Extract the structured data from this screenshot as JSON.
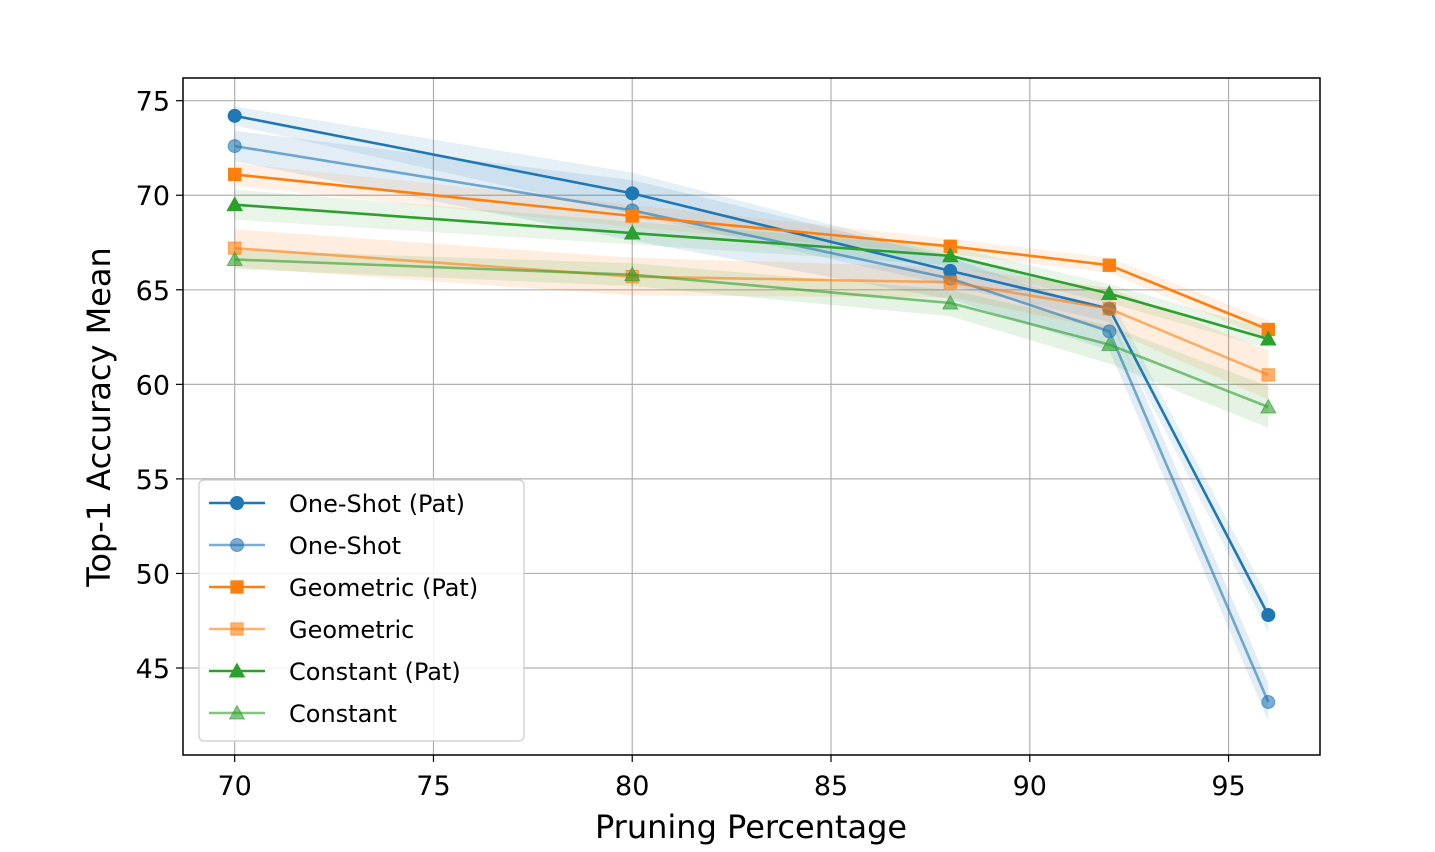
{
  "chart_data": {
    "type": "line",
    "title": "",
    "xlabel": "Pruning Percentage",
    "ylabel": "Top-1 Accuracy Mean",
    "xlim": [
      68.7,
      97.3
    ],
    "ylim": [
      40.4,
      76.2
    ],
    "xticks": [
      70,
      75,
      80,
      85,
      90,
      95
    ],
    "yticks": [
      45,
      50,
      55,
      60,
      65,
      70,
      75
    ],
    "grid": true,
    "legend_position": "bottom-left",
    "x": [
      70,
      80,
      88,
      92,
      96
    ],
    "series": [
      {
        "name": "One-Shot (Pat)",
        "marker": "circle",
        "color": "#1f77b4",
        "opacity": 1.0,
        "values": [
          74.2,
          70.1,
          66.0,
          64.0,
          47.8
        ],
        "band_lower": [
          73.7,
          69.0,
          65.2,
          63.3,
          46.9
        ],
        "band_upper": [
          74.7,
          71.2,
          66.8,
          64.7,
          48.7
        ]
      },
      {
        "name": "One-Shot",
        "marker": "circle",
        "color": "#1f77b4",
        "opacity": 0.6,
        "values": [
          72.6,
          69.2,
          65.6,
          62.8,
          43.2
        ],
        "band_lower": [
          71.8,
          67.6,
          64.5,
          61.8,
          42.2
        ],
        "band_upper": [
          73.4,
          70.8,
          66.7,
          63.8,
          44.2
        ]
      },
      {
        "name": "Geometric (Pat)",
        "marker": "square",
        "color": "#ff7f0e",
        "opacity": 1.0,
        "values": [
          71.1,
          68.9,
          67.3,
          66.3,
          62.9
        ],
        "band_lower": [
          70.5,
          68.3,
          66.9,
          65.9,
          62.4
        ],
        "band_upper": [
          71.7,
          69.5,
          67.7,
          66.7,
          63.4
        ]
      },
      {
        "name": "Geometric",
        "marker": "square",
        "color": "#ff7f0e",
        "opacity": 0.6,
        "values": [
          67.2,
          65.7,
          65.4,
          64.0,
          60.5
        ],
        "band_lower": [
          66.2,
          64.7,
          64.6,
          62.9,
          59.2
        ],
        "band_upper": [
          68.2,
          66.7,
          66.2,
          65.1,
          61.8
        ]
      },
      {
        "name": "Constant (Pat)",
        "marker": "triangle",
        "color": "#2ca02c",
        "opacity": 1.0,
        "values": [
          69.5,
          68.0,
          66.8,
          64.8,
          62.4
        ],
        "band_lower": [
          68.7,
          67.4,
          66.3,
          64.3,
          61.9
        ],
        "band_upper": [
          70.3,
          68.6,
          67.3,
          65.3,
          62.9
        ]
      },
      {
        "name": "Constant",
        "marker": "triangle",
        "color": "#2ca02c",
        "opacity": 0.6,
        "values": [
          66.6,
          65.8,
          64.3,
          62.1,
          58.8
        ],
        "band_lower": [
          66.1,
          65.2,
          63.6,
          61.1,
          57.7
        ],
        "band_upper": [
          67.1,
          66.4,
          65.0,
          63.1,
          59.9
        ]
      }
    ]
  }
}
